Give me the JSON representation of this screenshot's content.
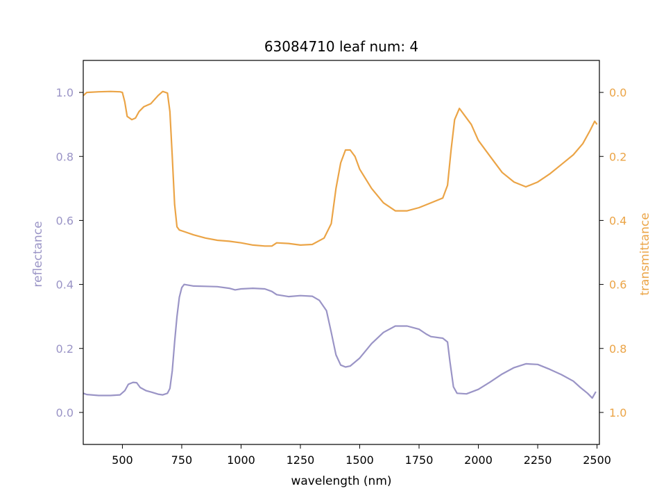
{
  "chart_data": {
    "type": "line",
    "title": "63084710 leaf num: 4",
    "xlabel": "wavelength (nm)",
    "ylabel_left": "reflectance",
    "ylabel_right": "transmittance",
    "xlim": [
      335,
      2510
    ],
    "ylim_left": [
      -0.1,
      1.1
    ],
    "ylim_right": [
      1.1,
      -0.1
    ],
    "right_axis_inverted": true,
    "x_ticks": [
      "500",
      "750",
      "1000",
      "1250",
      "1500",
      "1750",
      "2000",
      "2250",
      "2500"
    ],
    "y_left_ticks": [
      "0.0",
      "0.2",
      "0.4",
      "0.6",
      "0.8",
      "1.0"
    ],
    "y_right_ticks": [
      "0.0",
      "0.2",
      "0.4",
      "0.6",
      "0.8",
      "1.0"
    ],
    "grid": false,
    "colors": {
      "reflectance": "#9a94c6",
      "transmittance": "#eba446",
      "axis": "#000000"
    },
    "series": [
      {
        "axis": "left",
        "color": "#9a94c6",
        "points": [
          [
            335,
            0.06
          ],
          [
            350,
            0.056
          ],
          [
            400,
            0.053
          ],
          [
            450,
            0.053
          ],
          [
            490,
            0.055
          ],
          [
            510,
            0.068
          ],
          [
            525,
            0.088
          ],
          [
            545,
            0.094
          ],
          [
            560,
            0.093
          ],
          [
            575,
            0.078
          ],
          [
            600,
            0.068
          ],
          [
            625,
            0.063
          ],
          [
            650,
            0.057
          ],
          [
            670,
            0.055
          ],
          [
            690,
            0.06
          ],
          [
            700,
            0.075
          ],
          [
            710,
            0.13
          ],
          [
            720,
            0.22
          ],
          [
            730,
            0.3
          ],
          [
            740,
            0.36
          ],
          [
            750,
            0.39
          ],
          [
            760,
            0.4
          ],
          [
            800,
            0.395
          ],
          [
            850,
            0.394
          ],
          [
            900,
            0.393
          ],
          [
            950,
            0.388
          ],
          [
            975,
            0.383
          ],
          [
            1000,
            0.386
          ],
          [
            1050,
            0.388
          ],
          [
            1100,
            0.386
          ],
          [
            1130,
            0.378
          ],
          [
            1150,
            0.368
          ],
          [
            1200,
            0.362
          ],
          [
            1250,
            0.365
          ],
          [
            1300,
            0.363
          ],
          [
            1330,
            0.35
          ],
          [
            1360,
            0.318
          ],
          [
            1380,
            0.25
          ],
          [
            1400,
            0.18
          ],
          [
            1420,
            0.148
          ],
          [
            1440,
            0.142
          ],
          [
            1460,
            0.145
          ],
          [
            1500,
            0.17
          ],
          [
            1550,
            0.215
          ],
          [
            1600,
            0.25
          ],
          [
            1650,
            0.27
          ],
          [
            1700,
            0.27
          ],
          [
            1750,
            0.26
          ],
          [
            1780,
            0.245
          ],
          [
            1800,
            0.237
          ],
          [
            1850,
            0.232
          ],
          [
            1870,
            0.22
          ],
          [
            1880,
            0.16
          ],
          [
            1895,
            0.08
          ],
          [
            1910,
            0.06
          ],
          [
            1950,
            0.058
          ],
          [
            2000,
            0.072
          ],
          [
            2050,
            0.095
          ],
          [
            2100,
            0.12
          ],
          [
            2150,
            0.14
          ],
          [
            2200,
            0.152
          ],
          [
            2250,
            0.15
          ],
          [
            2300,
            0.135
          ],
          [
            2350,
            0.118
          ],
          [
            2400,
            0.098
          ],
          [
            2430,
            0.078
          ],
          [
            2460,
            0.06
          ],
          [
            2480,
            0.045
          ],
          [
            2495,
            0.065
          ]
        ]
      },
      {
        "axis": "right",
        "color": "#eba446",
        "points": [
          [
            335,
            0.01
          ],
          [
            350,
            0.0
          ],
          [
            400,
            -0.002
          ],
          [
            450,
            -0.003
          ],
          [
            490,
            -0.002
          ],
          [
            500,
            0.0
          ],
          [
            510,
            0.03
          ],
          [
            520,
            0.075
          ],
          [
            540,
            0.085
          ],
          [
            555,
            0.08
          ],
          [
            570,
            0.06
          ],
          [
            590,
            0.045
          ],
          [
            620,
            0.035
          ],
          [
            650,
            0.01
          ],
          [
            670,
            -0.003
          ],
          [
            690,
            0.002
          ],
          [
            700,
            0.06
          ],
          [
            710,
            0.2
          ],
          [
            720,
            0.35
          ],
          [
            730,
            0.42
          ],
          [
            740,
            0.43
          ],
          [
            760,
            0.435
          ],
          [
            800,
            0.445
          ],
          [
            850,
            0.455
          ],
          [
            900,
            0.462
          ],
          [
            950,
            0.465
          ],
          [
            1000,
            0.47
          ],
          [
            1050,
            0.477
          ],
          [
            1100,
            0.48
          ],
          [
            1130,
            0.48
          ],
          [
            1150,
            0.47
          ],
          [
            1200,
            0.472
          ],
          [
            1250,
            0.477
          ],
          [
            1300,
            0.475
          ],
          [
            1350,
            0.455
          ],
          [
            1380,
            0.41
          ],
          [
            1400,
            0.3
          ],
          [
            1420,
            0.22
          ],
          [
            1440,
            0.18
          ],
          [
            1460,
            0.18
          ],
          [
            1480,
            0.2
          ],
          [
            1500,
            0.24
          ],
          [
            1550,
            0.3
          ],
          [
            1600,
            0.345
          ],
          [
            1650,
            0.37
          ],
          [
            1700,
            0.37
          ],
          [
            1750,
            0.36
          ],
          [
            1800,
            0.345
          ],
          [
            1850,
            0.33
          ],
          [
            1870,
            0.29
          ],
          [
            1885,
            0.18
          ],
          [
            1900,
            0.085
          ],
          [
            1920,
            0.05
          ],
          [
            1940,
            0.07
          ],
          [
            1970,
            0.1
          ],
          [
            2000,
            0.15
          ],
          [
            2050,
            0.2
          ],
          [
            2100,
            0.25
          ],
          [
            2150,
            0.28
          ],
          [
            2200,
            0.295
          ],
          [
            2250,
            0.28
          ],
          [
            2300,
            0.255
          ],
          [
            2350,
            0.225
          ],
          [
            2400,
            0.195
          ],
          [
            2440,
            0.16
          ],
          [
            2470,
            0.12
          ],
          [
            2490,
            0.09
          ],
          [
            2500,
            0.1
          ]
        ]
      }
    ]
  }
}
